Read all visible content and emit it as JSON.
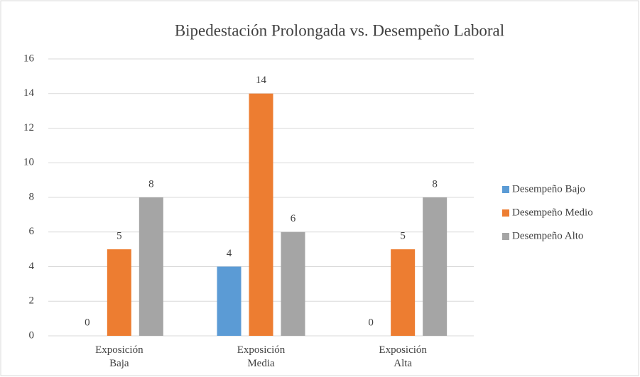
{
  "chart_data": {
    "type": "bar",
    "title": "Bipedestación Prolongada vs. Desempeño Laboral",
    "categories": [
      "Exposición Baja",
      "Exposición Media",
      "Exposición Alta"
    ],
    "series": [
      {
        "name": "Desempeño Bajo",
        "color": "#5b9bd5",
        "values": [
          0,
          4,
          0
        ]
      },
      {
        "name": "Desempeño Medio",
        "color": "#ed7d31",
        "values": [
          5,
          14,
          5
        ]
      },
      {
        "name": "Desempeño Alto",
        "color": "#a5a5a5",
        "values": [
          8,
          6,
          8
        ]
      }
    ],
    "ylim": [
      0,
      16
    ],
    "yticks": [
      0,
      2,
      4,
      6,
      8,
      10,
      12,
      14,
      16
    ],
    "grid": true,
    "legend": "right"
  }
}
